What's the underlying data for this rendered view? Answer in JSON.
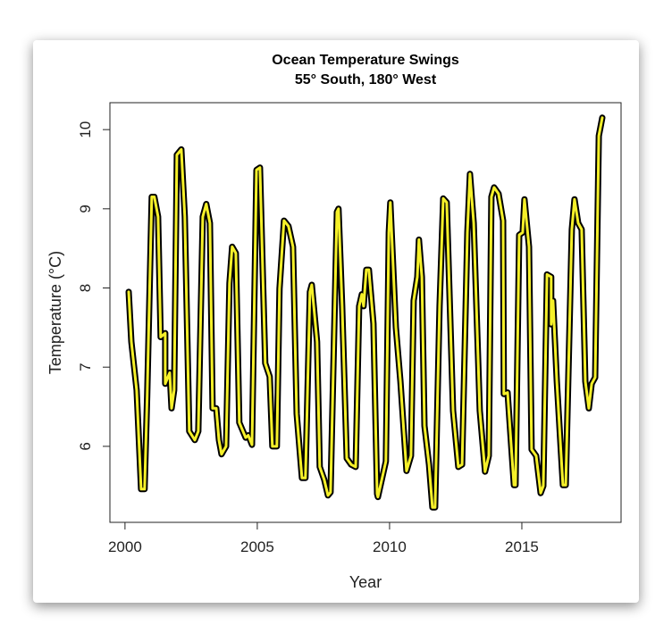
{
  "chart_data": {
    "type": "line",
    "title": "Ocean Temperature Swings",
    "subtitle": "55° South, 180° West",
    "xlabel": "Year",
    "ylabel": "Temperature (°C)",
    "xlim": [
      1999.43,
      2018.75
    ],
    "ylim": [
      5.04,
      10.34
    ],
    "xticks": [
      2000,
      2005,
      2010,
      2015
    ],
    "xtick_labels": [
      "2000",
      "2005",
      "2010",
      "2015"
    ],
    "yticks": [
      6,
      7,
      8,
      9,
      10
    ],
    "ytick_labels": [
      "6",
      "7",
      "8",
      "9",
      "10"
    ],
    "grid": false,
    "series": [
      {
        "name": "Temperature",
        "color": "#f5f02a",
        "outline": "#000000",
        "x": [
          2000.14,
          2000.24,
          2000.44,
          2000.61,
          2000.74,
          2000.84,
          2001.01,
          2001.11,
          2001.25,
          2001.35,
          2001.52,
          2001.52,
          2001.69,
          2001.76,
          2001.86,
          2001.96,
          2002.13,
          2002.26,
          2002.43,
          2002.64,
          2002.77,
          2002.94,
          2003.07,
          2003.21,
          2003.31,
          2003.45,
          2003.55,
          2003.65,
          2003.82,
          2003.95,
          2004.05,
          2004.19,
          2004.32,
          2004.56,
          2004.66,
          2004.8,
          2004.97,
          2005.1,
          2005.3,
          2005.47,
          2005.57,
          2005.74,
          2005.84,
          2006.01,
          2006.18,
          2006.35,
          2006.49,
          2006.69,
          2006.82,
          2006.99,
          2007.06,
          2007.26,
          2007.36,
          2007.53,
          2007.67,
          2007.77,
          2008.01,
          2008.07,
          2008.21,
          2008.38,
          2008.55,
          2008.72,
          2008.85,
          2008.95,
          2009.02,
          2009.12,
          2009.22,
          2009.39,
          2009.53,
          2009.56,
          2009.86,
          2009.97,
          2010.03,
          2010.24,
          2010.41,
          2010.64,
          2010.81,
          2010.91,
          2011.05,
          2011.11,
          2011.22,
          2011.32,
          2011.49,
          2011.62,
          2011.72,
          2011.89,
          2012.03,
          2012.16,
          2012.4,
          2012.6,
          2012.74,
          2012.94,
          2013.04,
          2013.18,
          2013.41,
          2013.61,
          2013.75,
          2013.85,
          2013.95,
          2014.12,
          2014.29,
          2014.32,
          2014.46,
          2014.7,
          2014.76,
          2014.9,
          2015.03,
          2015.1,
          2015.27,
          2015.37,
          2015.54,
          2015.71,
          2015.81,
          2015.95,
          2016.11,
          2016.11,
          2016.18,
          2016.32,
          2016.55,
          2016.66,
          2016.89,
          2016.99,
          2017.13,
          2017.26,
          2017.4,
          2017.53,
          2017.64,
          2017.77,
          2017.91,
          2018.04
        ],
        "y": [
          7.95,
          7.32,
          6.71,
          5.46,
          5.46,
          6.64,
          9.15,
          9.15,
          8.9,
          7.38,
          7.43,
          6.79,
          6.93,
          6.48,
          6.71,
          9.68,
          9.75,
          8.9,
          6.19,
          6.08,
          6.19,
          8.9,
          9.06,
          8.82,
          6.48,
          6.48,
          6.08,
          5.9,
          6.0,
          8.06,
          8.52,
          8.44,
          6.3,
          6.11,
          6.14,
          6.02,
          9.49,
          9.52,
          7.05,
          6.88,
          6.0,
          6.0,
          7.99,
          8.85,
          8.78,
          8.52,
          6.41,
          5.6,
          5.6,
          7.95,
          8.04,
          7.32,
          5.74,
          5.58,
          5.38,
          5.42,
          8.96,
          9.0,
          7.77,
          5.85,
          5.77,
          5.74,
          7.77,
          7.92,
          7.77,
          8.23,
          8.23,
          7.55,
          5.4,
          5.36,
          5.81,
          8.7,
          9.08,
          7.5,
          6.82,
          5.69,
          5.88,
          7.84,
          8.14,
          8.61,
          8.14,
          6.26,
          5.77,
          5.23,
          5.23,
          7.77,
          9.13,
          9.08,
          6.45,
          5.74,
          5.77,
          8.7,
          9.44,
          8.82,
          6.45,
          5.68,
          5.88,
          9.15,
          9.27,
          9.19,
          8.85,
          6.66,
          6.68,
          5.51,
          5.51,
          8.67,
          8.7,
          9.12,
          8.52,
          5.96,
          5.88,
          5.41,
          5.5,
          8.17,
          8.14,
          7.54,
          7.84,
          6.82,
          5.51,
          5.51,
          8.74,
          9.12,
          8.82,
          8.74,
          6.82,
          6.48,
          6.79,
          6.87,
          9.92,
          10.15
        ]
      }
    ]
  }
}
